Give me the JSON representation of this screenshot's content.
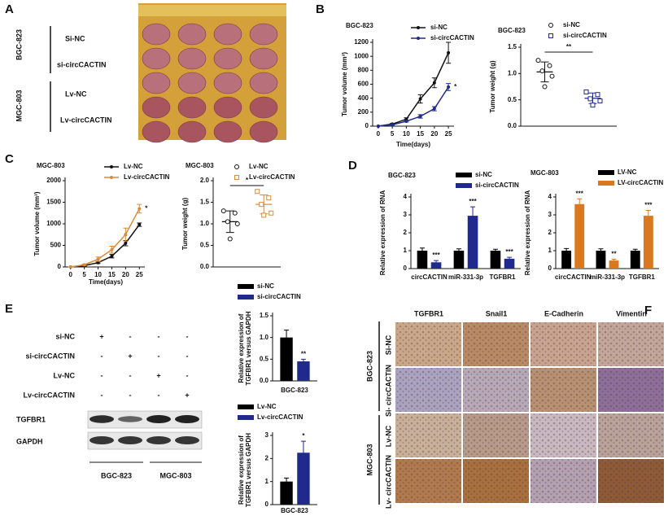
{
  "panels": {
    "A": {
      "letter": "A",
      "groups": [
        "BGC-823",
        "MGC-803"
      ],
      "rows": [
        "Si-NC",
        "si-circCACTIN",
        "Lv-NC",
        "Lv-circCACTIN"
      ]
    },
    "B": {
      "letter": "B"
    },
    "C": {
      "letter": "C"
    },
    "D": {
      "letter": "D"
    },
    "E": {
      "letter": "E",
      "conditions": [
        {
          "label": "si-NC",
          "marks": [
            "+",
            "-",
            "-",
            "-"
          ]
        },
        {
          "label": "si-circCACTIN",
          "marks": [
            "-",
            "+",
            "-",
            "-"
          ]
        },
        {
          "label": "Lv-NC",
          "marks": [
            "-",
            "-",
            "+",
            "-"
          ]
        },
        {
          "label": "Lv-circCACTIN",
          "marks": [
            "-",
            "-",
            "-",
            "+"
          ]
        }
      ],
      "bands": [
        "TGFBR1",
        "GAPDH"
      ],
      "groups": [
        "BGC-823",
        "MGC-803"
      ]
    },
    "F": {
      "letter": "F",
      "columns": [
        "TGFBR1",
        "Snail1",
        "E-Cadherin",
        "Vimentin"
      ],
      "rows": [
        "Si-NC",
        "Si- circCACTIN",
        "Lv-NC",
        "Lv- circCACTIN"
      ],
      "groups": [
        "BGC-823",
        "MGC-803"
      ]
    }
  },
  "chart_data": [
    {
      "type": "line",
      "title": "BGC-823",
      "xlabel": "Time(days)",
      "ylabel": "Tumor volume (mm³)",
      "x": [
        0,
        5,
        10,
        15,
        20,
        25
      ],
      "xlim": [
        -2,
        27
      ],
      "xticks": [
        0,
        5,
        10,
        15,
        20,
        25
      ],
      "ylim": [
        0,
        1200
      ],
      "yticks": [
        0,
        200,
        400,
        600,
        800,
        1000,
        1200
      ],
      "annotation": "*",
      "series": [
        {
          "name": "si-NC",
          "color": "#111111",
          "values": [
            0,
            30,
            100,
            390,
            620,
            1050
          ],
          "errors": [
            0,
            10,
            20,
            60,
            70,
            150
          ]
        },
        {
          "name": "si-circCACTIN",
          "color": "#1f2a8c",
          "values": [
            0,
            20,
            70,
            140,
            250,
            560
          ],
          "errors": [
            0,
            5,
            10,
            25,
            30,
            50
          ]
        }
      ]
    },
    {
      "type": "strip",
      "title": "BGC-823",
      "ylabel": "Tumor weight (g)",
      "ylim": [
        0,
        1.5
      ],
      "yticks": [
        {
          "value": 0,
          "label": "0.0"
        },
        {
          "value": 0.5,
          "label": "0.5"
        },
        {
          "value": 1,
          "label": "1.0"
        },
        {
          "value": 1.5,
          "label": "1.5"
        }
      ],
      "annotation": "**",
      "series": [
        {
          "name": "si-NC",
          "color": "#111111",
          "marker": "circle",
          "values": [
            1.25,
            1.15,
            1.05,
            0.95,
            0.75
          ],
          "mean": 1.03,
          "sd": 0.19
        },
        {
          "name": "si-circCACTIN",
          "color": "#1f2a8c",
          "marker": "square",
          "values": [
            0.65,
            0.6,
            0.52,
            0.48,
            0.4
          ],
          "mean": 0.53,
          "sd": 0.1
        }
      ]
    },
    {
      "type": "line",
      "title": "MGC-803",
      "xlabel": "Time(days)",
      "ylabel": "Tumor volume (mm³)",
      "x": [
        0,
        5,
        10,
        15,
        20,
        25
      ],
      "xlim": [
        -2,
        27
      ],
      "xticks": [
        0,
        5,
        10,
        15,
        20,
        25
      ],
      "ylim": [
        0,
        2000
      ],
      "yticks": [
        0,
        500,
        1000,
        1500,
        2000
      ],
      "annotation": "*",
      "series": [
        {
          "name": "Lv-NC",
          "color": "#111111",
          "values": [
            0,
            30,
            100,
            250,
            550,
            980
          ],
          "errors": [
            0,
            10,
            20,
            40,
            60,
            40
          ]
        },
        {
          "name": "Lv-circCACTIN",
          "color": "#d98a3a",
          "values": [
            0,
            50,
            180,
            400,
            750,
            1350
          ],
          "errors": [
            0,
            15,
            50,
            80,
            150,
            100
          ]
        }
      ]
    },
    {
      "type": "strip",
      "title": "MGC-803",
      "ylabel": "Tumor weight (g)",
      "ylim": [
        0,
        2
      ],
      "yticks": [
        {
          "value": 0,
          "label": "0.0"
        },
        {
          "value": 0.5,
          "label": "0.5"
        },
        {
          "value": 1,
          "label": "1.0"
        },
        {
          "value": 1.5,
          "label": "1.5"
        },
        {
          "value": 2,
          "label": "2.0"
        }
      ],
      "annotation": "*",
      "series": [
        {
          "name": "Lv-NC",
          "color": "#111111",
          "marker": "circle",
          "values": [
            1.3,
            1.25,
            1.05,
            1.0,
            0.65
          ],
          "mean": 1.05,
          "sd": 0.25
        },
        {
          "name": "Lv-circCACTIN",
          "color": "#d98a3a",
          "marker": "square",
          "values": [
            1.75,
            1.6,
            1.45,
            1.25,
            1.2
          ],
          "mean": 1.45,
          "sd": 0.22
        }
      ]
    },
    {
      "type": "bar",
      "title": "BGC-823",
      "ylabel": "Relative expression of RNA",
      "categories": [
        "circCACTIN",
        "miR-331-3p",
        "TGFBR1"
      ],
      "ylim": [
        0,
        4
      ],
      "yticks": [
        0,
        1,
        2,
        3,
        4
      ],
      "annotations": [
        "***",
        "***",
        "***"
      ],
      "series": [
        {
          "name": "si-NC",
          "color": "#000000",
          "values": [
            1,
            1,
            1
          ],
          "errors": [
            0.15,
            0.1,
            0.08
          ]
        },
        {
          "name": "si-circCACTIN",
          "color": "#1f2a8c",
          "values": [
            0.35,
            2.95,
            0.55
          ],
          "errors": [
            0.1,
            0.5,
            0.08
          ]
        }
      ]
    },
    {
      "type": "bar",
      "title": "MGC-803",
      "ylabel": "Relative expression of RNA",
      "categories": [
        "circCACTIN",
        "miR-331-3p",
        "TGFBR1"
      ],
      "ylim": [
        0,
        4
      ],
      "yticks": [
        0,
        1,
        2,
        3,
        4
      ],
      "annotations": [
        "***",
        "**",
        "***"
      ],
      "series": [
        {
          "name": "LV-NC",
          "color": "#000000",
          "values": [
            1,
            1,
            1
          ],
          "errors": [
            0.12,
            0.1,
            0.08
          ]
        },
        {
          "name": "LV-circCACTIN",
          "color": "#d9781e",
          "values": [
            3.6,
            0.45,
            2.95
          ],
          "errors": [
            0.3,
            0.08,
            0.3
          ]
        }
      ]
    },
    {
      "type": "bar",
      "xlabel": "BGC-823",
      "ylabel": [
        "Relative expression of",
        "TGFBR1 versus GAPDH"
      ],
      "categories": [
        null
      ],
      "ylim": [
        0,
        1.5
      ],
      "yticks": [
        {
          "value": 0,
          "label": "0.0"
        },
        {
          "value": 0.5,
          "label": "0.5"
        },
        {
          "value": 1,
          "label": "1.0"
        },
        {
          "value": 1.5,
          "label": "1.5"
        }
      ],
      "annotations": [
        "**"
      ],
      "series": [
        {
          "name": "si-NC",
          "color": "#000000",
          "values": [
            1.0
          ],
          "errors": [
            0.17
          ]
        },
        {
          "name": "si-circCACTIN",
          "color": "#1f2a8c",
          "values": [
            0.45
          ],
          "errors": [
            0.05
          ]
        }
      ]
    },
    {
      "type": "bar",
      "xlabel": "BGC-823",
      "ylabel": [
        "Relative expression of",
        "TGFBR1 versus GAPDH"
      ],
      "categories": [
        null
      ],
      "ylim": [
        0,
        3
      ],
      "yticks": [
        0,
        1,
        2,
        3
      ],
      "annotations": [
        "*"
      ],
      "series": [
        {
          "name": "Lv-NC",
          "color": "#000000",
          "values": [
            1.0
          ],
          "errors": [
            0.15
          ]
        },
        {
          "name": "Lv-circCACTIN",
          "color": "#1f2a8c",
          "values": [
            2.25
          ],
          "errors": [
            0.5
          ]
        }
      ]
    }
  ]
}
